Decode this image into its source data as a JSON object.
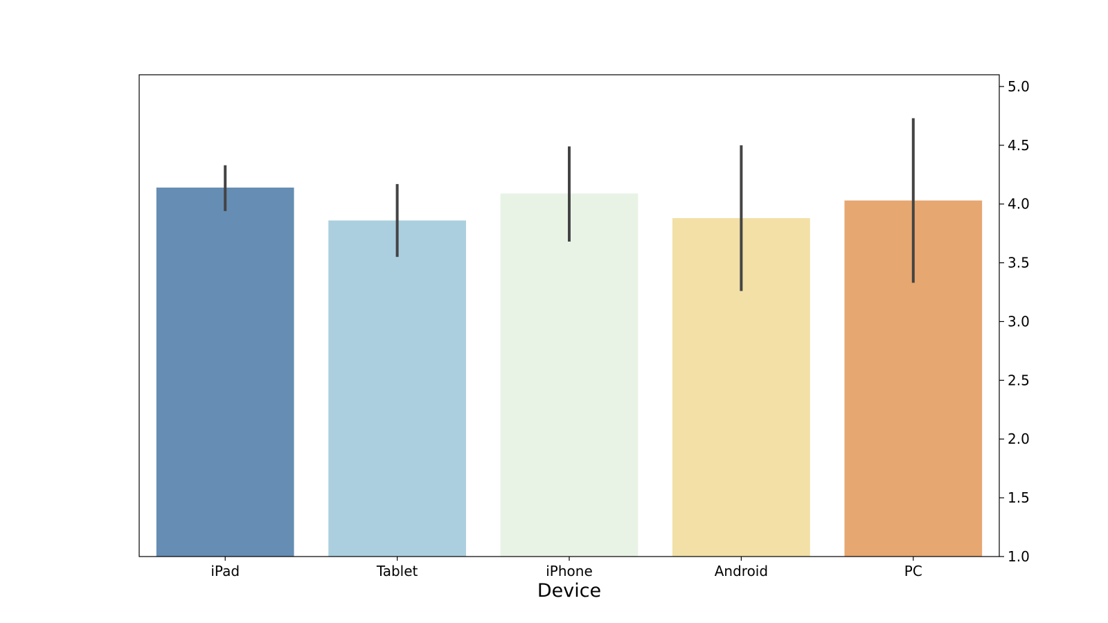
{
  "chart_data": {
    "type": "bar",
    "title": "",
    "xlabel": "Device",
    "ylabel": "",
    "categories": [
      "iPad",
      "Tablet",
      "iPhone",
      "Android",
      "PC"
    ],
    "values": [
      4.14,
      3.86,
      4.09,
      3.88,
      4.03
    ],
    "error_low": [
      3.94,
      3.55,
      3.68,
      3.26,
      3.33
    ],
    "error_high": [
      4.33,
      4.17,
      4.49,
      4.5,
      4.73
    ],
    "colors": [
      "#668db3",
      "#abcfdf",
      "#e8f3e6",
      "#f2e0a6",
      "#e7a770"
    ],
    "error_color": "#444444",
    "ylim": [
      1.0,
      5.1
    ],
    "yticks": [
      "1.0",
      "1.5",
      "2.0",
      "2.5",
      "3.0",
      "3.5",
      "4.0",
      "4.5",
      "5.0"
    ],
    "y_axis_side": "right",
    "grid": false
  }
}
